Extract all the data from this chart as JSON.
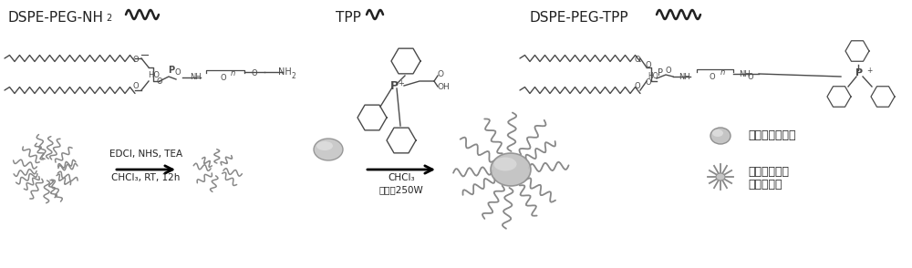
{
  "bg_color": "#ffffff",
  "cc": "#4a4a4a",
  "dark": "#222222",
  "gray_fill": "#b8b8b8",
  "gray_edge": "#888888",
  "label_dspe_nh2": "DSPE-PEG-NH",
  "label_tpp": "TPP",
  "label_dspe_tpp": "DSPE-PEG-TPP",
  "label_edci": "EDCI, NHS, TEA",
  "label_chcl3_1": "CHCl₃, RT, 12h",
  "label_chcl3_2": "CHCl₃",
  "label_ultrasound": "超声，250W",
  "label_mos2": "二硫化钒量子点",
  "label_tpp_mos2_1": "三苯基膚二硫",
  "label_tpp_mos2_2": "化钒量子点"
}
